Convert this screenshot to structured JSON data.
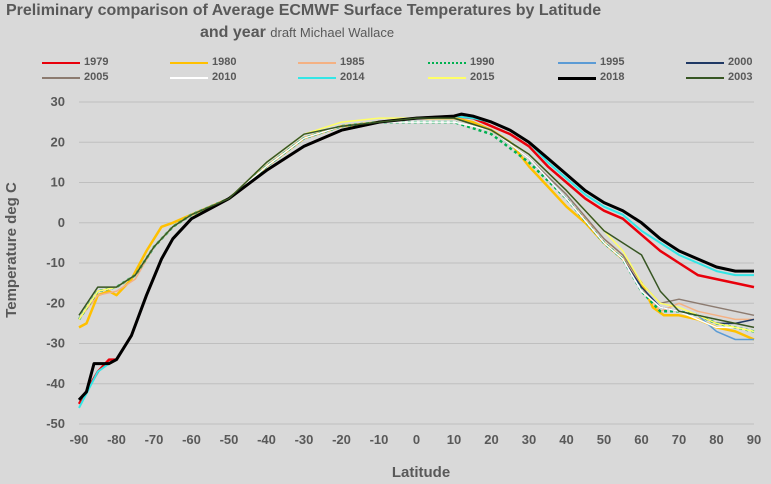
{
  "chart_data": {
    "type": "line",
    "title": "Preliminary comparison of Average ECMWF Surface Temperatures by Latitude",
    "title_line2": "and year",
    "subtitle": "draft Michael Wallace",
    "xlabel": "Latitude",
    "ylabel": "Temperature deg C",
    "xlim": [
      -90,
      90
    ],
    "ylim": [
      -50,
      30
    ],
    "x_ticks": [
      -90,
      -80,
      -70,
      -60,
      -50,
      -40,
      -30,
      -20,
      -10,
      0,
      10,
      20,
      30,
      40,
      50,
      60,
      70,
      80,
      90
    ],
    "y_ticks": [
      30,
      20,
      10,
      0,
      -10,
      -20,
      -30,
      -40,
      -50
    ],
    "grid": true,
    "legend_position": "top",
    "series": [
      {
        "name": "1979",
        "color": "#e8000b",
        "width": 2.5,
        "dash": "",
        "x": [
          -90,
          -85,
          -82,
          -80,
          -76,
          -72,
          -68,
          -65,
          -60,
          -50,
          -40,
          -30,
          -20,
          -10,
          0,
          10,
          15,
          20,
          25,
          30,
          35,
          40,
          45,
          50,
          55,
          60,
          65,
          70,
          75,
          80,
          85,
          90
        ],
        "y": [
          -45,
          -37,
          -34,
          -34,
          -28,
          -18,
          -9,
          -4,
          1,
          6,
          13,
          19,
          23,
          25,
          26,
          26.5,
          26,
          24,
          22,
          19,
          14,
          10,
          6,
          3,
          1,
          -3,
          -7,
          -10,
          -13,
          -14,
          -15,
          -16
        ]
      },
      {
        "name": "1980",
        "color": "#ffc000",
        "width": 2.5,
        "dash": "",
        "x": [
          -90,
          -88,
          -85,
          -82,
          -80,
          -76,
          -72,
          -68,
          -65,
          -60,
          -50,
          -40,
          -30,
          -20,
          -10,
          0,
          10,
          15,
          20,
          25,
          30,
          35,
          40,
          45,
          50,
          55,
          60,
          63,
          66,
          70,
          75,
          80,
          85,
          90
        ],
        "y": [
          -26,
          -25,
          -18,
          -17,
          -18,
          -14,
          -7,
          -1,
          0,
          2,
          6,
          14,
          21,
          24,
          25,
          26,
          26,
          25,
          23,
          20,
          14,
          9,
          4,
          0,
          -5,
          -9,
          -15,
          -21,
          -23,
          -23,
          -24,
          -26,
          -27,
          -29
        ]
      },
      {
        "name": "1985",
        "color": "#f4b183",
        "width": 1.5,
        "dash": "",
        "x": [
          -90,
          -85,
          -80,
          -75,
          -70,
          -65,
          -60,
          -50,
          -40,
          -30,
          -20,
          -10,
          0,
          10,
          20,
          30,
          40,
          50,
          55,
          60,
          65,
          70,
          75,
          80,
          85,
          90
        ],
        "y": [
          -24,
          -18,
          -17,
          -14,
          -6,
          -1,
          2,
          6,
          14,
          21,
          24,
          25,
          26,
          26,
          23,
          16,
          6,
          -4,
          -8,
          -16,
          -22,
          -20,
          -22,
          -23,
          -24,
          -24
        ]
      },
      {
        "name": "1990",
        "color": "#00b050",
        "width": 2.5,
        "dash": "3,3",
        "x": [
          -90,
          -85,
          -80,
          -75,
          -70,
          -65,
          -60,
          -50,
          -40,
          -30,
          -20,
          -10,
          0,
          10,
          20,
          30,
          40,
          50,
          55,
          60,
          65,
          70,
          75,
          80,
          85,
          90
        ],
        "y": [
          -24,
          -17,
          -16,
          -13,
          -6,
          -1,
          2,
          6,
          14,
          21,
          24,
          25,
          25,
          25,
          22,
          15,
          6,
          -5,
          -9,
          -17,
          -22,
          -22,
          -23,
          -25,
          -26,
          -27
        ]
      },
      {
        "name": "1995",
        "color": "#5b9bd5",
        "width": 1.5,
        "dash": "",
        "x": [
          -90,
          -85,
          -80,
          -75,
          -70,
          -65,
          -60,
          -50,
          -40,
          -30,
          -20,
          -10,
          0,
          10,
          20,
          30,
          40,
          50,
          55,
          60,
          65,
          70,
          75,
          80,
          85,
          90
        ],
        "y": [
          -24,
          -17,
          -16,
          -13,
          -6,
          -1,
          2,
          6,
          14,
          21,
          24,
          25,
          26,
          26,
          23,
          16,
          6,
          -5,
          -9,
          -17,
          -21,
          -22,
          -23,
          -27,
          -29,
          -29
        ]
      },
      {
        "name": "2000",
        "color": "#1f3864",
        "width": 1.5,
        "dash": "",
        "x": [
          -90,
          -85,
          -80,
          -75,
          -70,
          -65,
          -60,
          -50,
          -40,
          -30,
          -20,
          -10,
          0,
          10,
          20,
          30,
          40,
          50,
          55,
          60,
          65,
          70,
          75,
          80,
          85,
          90
        ],
        "y": [
          -24,
          -17,
          -16,
          -13,
          -6,
          -1,
          2,
          6,
          14,
          21,
          24,
          25,
          26,
          26,
          23,
          16,
          6,
          -5,
          -9,
          -16,
          -21,
          -22,
          -23,
          -25,
          -25,
          -24
        ]
      },
      {
        "name": "2005",
        "color": "#8c7b70",
        "width": 1.5,
        "dash": "",
        "x": [
          -90,
          -85,
          -80,
          -75,
          -70,
          -65,
          -60,
          -50,
          -40,
          -30,
          -20,
          -10,
          0,
          10,
          20,
          30,
          40,
          50,
          55,
          60,
          65,
          70,
          75,
          80,
          85,
          90
        ],
        "y": [
          -24,
          -17,
          -16,
          -13,
          -6,
          -1,
          2,
          6,
          14,
          21,
          24,
          25,
          26,
          26,
          23,
          16,
          7,
          -4,
          -8,
          -15,
          -20,
          -19,
          -20,
          -21,
          -22,
          -23
        ]
      },
      {
        "name": "2010",
        "color": "#ffffff",
        "width": 1.5,
        "dash": "",
        "x": [
          -90,
          -85,
          -80,
          -75,
          -70,
          -65,
          -60,
          -50,
          -40,
          -30,
          -20,
          -10,
          0,
          10,
          20,
          30,
          40,
          50,
          55,
          60,
          65,
          70,
          75,
          80,
          85,
          90
        ],
        "y": [
          -24,
          -17,
          -16,
          -13,
          -6,
          -1,
          2,
          6,
          14,
          21,
          24,
          25,
          25,
          25,
          23,
          16,
          6,
          -5,
          -9,
          -17,
          -21,
          -22,
          -24,
          -26,
          -26,
          -27
        ]
      },
      {
        "name": "2014",
        "color": "#33e6e6",
        "width": 2,
        "dash": "",
        "x": [
          -90,
          -85,
          -82,
          -80,
          -76,
          -72,
          -68,
          -65,
          -60,
          -50,
          -40,
          -30,
          -20,
          -10,
          0,
          10,
          15,
          20,
          25,
          30,
          35,
          40,
          45,
          50,
          55,
          60,
          65,
          70,
          75,
          80,
          85,
          90
        ],
        "y": [
          -46,
          -37,
          -35,
          -34,
          -28,
          -18,
          -9,
          -4,
          1,
          6,
          13,
          19,
          23,
          25,
          26,
          26.5,
          26,
          25,
          23,
          20,
          15,
          11,
          7,
          4,
          2,
          -2,
          -5,
          -8,
          -10,
          -12,
          -13,
          -13
        ]
      },
      {
        "name": "2015",
        "color": "#ffff66",
        "width": 1.5,
        "dash": "",
        "x": [
          -90,
          -85,
          -80,
          -75,
          -70,
          -65,
          -60,
          -50,
          -40,
          -30,
          -20,
          -10,
          0,
          10,
          20,
          30,
          40,
          50,
          55,
          60,
          65,
          70,
          75,
          80,
          85,
          90
        ],
        "y": [
          -24,
          -17,
          -16,
          -13,
          -6,
          -1,
          2,
          6,
          15,
          22,
          25,
          26,
          26,
          26,
          23,
          17,
          8,
          -2,
          -7,
          -15,
          -20,
          -21,
          -23,
          -25,
          -26,
          -27
        ]
      },
      {
        "name": "2018",
        "color": "#000000",
        "width": 3,
        "dash": "",
        "x": [
          -90,
          -88,
          -86,
          -84,
          -82,
          -80,
          -76,
          -72,
          -68,
          -65,
          -60,
          -50,
          -40,
          -30,
          -20,
          -10,
          0,
          10,
          12,
          15,
          20,
          25,
          30,
          35,
          40,
          45,
          50,
          55,
          60,
          65,
          70,
          75,
          80,
          85,
          90
        ],
        "y": [
          -44,
          -42,
          -35,
          -35,
          -35,
          -34,
          -28,
          -18,
          -9,
          -4,
          1,
          6,
          13,
          19,
          23,
          25,
          26,
          26.5,
          27,
          26.5,
          25,
          23,
          20,
          16,
          12,
          8,
          5,
          3,
          0,
          -4,
          -7,
          -9,
          -11,
          -12,
          -12
        ]
      },
      {
        "name": "2003",
        "color": "#375623",
        "width": 1.5,
        "dash": "",
        "x": [
          -90,
          -85,
          -80,
          -75,
          -70,
          -65,
          -60,
          -50,
          -40,
          -30,
          -20,
          -10,
          0,
          10,
          20,
          30,
          40,
          50,
          55,
          60,
          65,
          70,
          75,
          80,
          85,
          90
        ],
        "y": [
          -23,
          -16,
          -16,
          -13,
          -6,
          -1,
          2,
          6,
          15,
          22,
          24,
          25,
          26,
          26,
          23,
          17,
          8,
          -2,
          -5,
          -8,
          -17,
          -22,
          -23,
          -24,
          -25,
          -26
        ]
      }
    ]
  }
}
